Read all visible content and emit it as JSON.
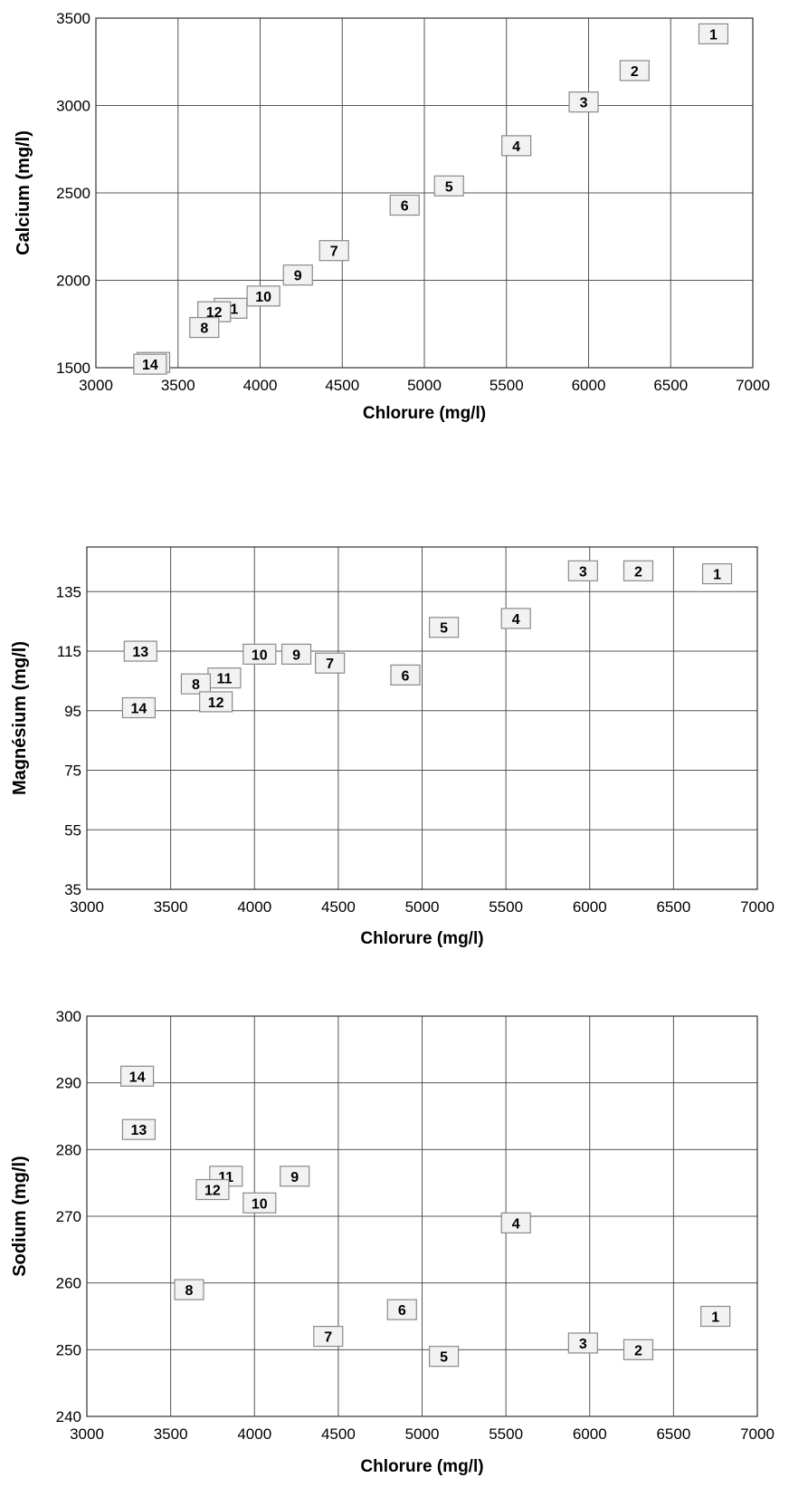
{
  "chart_data": [
    {
      "type": "scatter",
      "xlabel": "Chlorure (mg/l)",
      "ylabel": "Calcium (mg/l)",
      "xlim": [
        3000,
        7000
      ],
      "ylim": [
        1500,
        3500
      ],
      "xticks": [
        "3000",
        "3500",
        "4000",
        "4500",
        "5000",
        "5500",
        "6000",
        "6500",
        "7000"
      ],
      "yticks": [
        "1500",
        "2000",
        "2500",
        "3000",
        "3500"
      ],
      "grid": true,
      "points": [
        {
          "label": "1",
          "x": 6760,
          "y": 3410
        },
        {
          "label": "2",
          "x": 6280,
          "y": 3200
        },
        {
          "label": "3",
          "x": 5970,
          "y": 3020
        },
        {
          "label": "4",
          "x": 5560,
          "y": 2770
        },
        {
          "label": "5",
          "x": 5150,
          "y": 2540
        },
        {
          "label": "6",
          "x": 4880,
          "y": 2430
        },
        {
          "label": "7",
          "x": 4450,
          "y": 2170
        },
        {
          "label": "9",
          "x": 4230,
          "y": 2030
        },
        {
          "label": "10",
          "x": 4020,
          "y": 1910
        },
        {
          "label": "11",
          "x": 3820,
          "y": 1840
        },
        {
          "label": "12",
          "x": 3720,
          "y": 1820
        },
        {
          "label": "8",
          "x": 3660,
          "y": 1730
        },
        {
          "label": "13",
          "x": 3350,
          "y": 1530
        },
        {
          "label": "14",
          "x": 3330,
          "y": 1520
        }
      ]
    },
    {
      "type": "scatter",
      "xlabel": "Chlorure (mg/l)",
      "ylabel": "Magnésium (mg/l)",
      "xlim": [
        3000,
        7000
      ],
      "ylim": [
        35,
        150
      ],
      "xticks": [
        "3000",
        "3500",
        "4000",
        "4500",
        "5000",
        "5500",
        "6000",
        "6500",
        "7000"
      ],
      "yticks": [
        "35",
        "55",
        "75",
        "95",
        "115",
        "135"
      ],
      "grid": true,
      "points": [
        {
          "label": "1",
          "x": 6760,
          "y": 141
        },
        {
          "label": "2",
          "x": 6290,
          "y": 142
        },
        {
          "label": "3",
          "x": 5960,
          "y": 142
        },
        {
          "label": "4",
          "x": 5560,
          "y": 126
        },
        {
          "label": "5",
          "x": 5130,
          "y": 123
        },
        {
          "label": "6",
          "x": 4900,
          "y": 107
        },
        {
          "label": "7",
          "x": 4450,
          "y": 111
        },
        {
          "label": "9",
          "x": 4250,
          "y": 114
        },
        {
          "label": "10",
          "x": 4030,
          "y": 114
        },
        {
          "label": "11",
          "x": 3820,
          "y": 106
        },
        {
          "label": "8",
          "x": 3650,
          "y": 104
        },
        {
          "label": "12",
          "x": 3770,
          "y": 98
        },
        {
          "label": "13",
          "x": 3320,
          "y": 115
        },
        {
          "label": "14",
          "x": 3310,
          "y": 96
        }
      ]
    },
    {
      "type": "scatter",
      "xlabel": "Chlorure (mg/l)",
      "ylabel": "Sodium (mg/l)",
      "xlim": [
        3000,
        7000
      ],
      "ylim": [
        240,
        300
      ],
      "xticks": [
        "3000",
        "3500",
        "4000",
        "4500",
        "5000",
        "5500",
        "6000",
        "6500",
        "7000"
      ],
      "yticks": [
        "240",
        "250",
        "260",
        "270",
        "280",
        "290",
        "300"
      ],
      "grid": true,
      "points": [
        {
          "label": "1",
          "x": 6750,
          "y": 255
        },
        {
          "label": "2",
          "x": 6290,
          "y": 250
        },
        {
          "label": "3",
          "x": 5960,
          "y": 251
        },
        {
          "label": "4",
          "x": 5560,
          "y": 269
        },
        {
          "label": "5",
          "x": 5130,
          "y": 249
        },
        {
          "label": "6",
          "x": 4880,
          "y": 256
        },
        {
          "label": "7",
          "x": 4440,
          "y": 252
        },
        {
          "label": "8",
          "x": 3610,
          "y": 259
        },
        {
          "label": "9",
          "x": 4240,
          "y": 276
        },
        {
          "label": "10",
          "x": 4030,
          "y": 272
        },
        {
          "label": "11",
          "x": 3830,
          "y": 276
        },
        {
          "label": "12",
          "x": 3750,
          "y": 274
        },
        {
          "label": "13",
          "x": 3310,
          "y": 283
        },
        {
          "label": "14",
          "x": 3300,
          "y": 291
        }
      ]
    }
  ]
}
